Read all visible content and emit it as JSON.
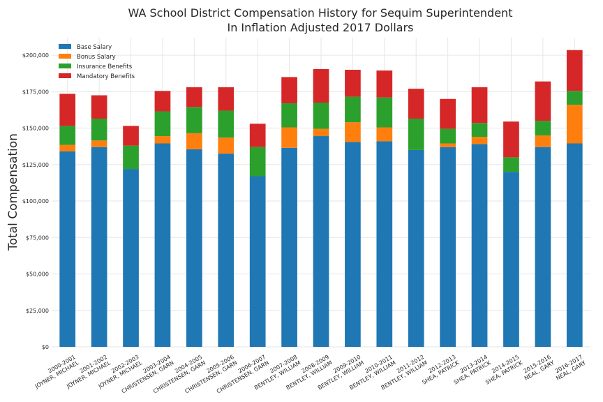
{
  "chart_data": {
    "type": "bar",
    "stacked": true,
    "title": "WA School District Compensation History for Sequim Superintendent",
    "subtitle": "In Inflation Adjusted 2017 Dollars",
    "xlabel": "",
    "ylabel": "Total Compensation",
    "ylim": [
      0,
      212000
    ],
    "yticks": [
      0,
      25000,
      50000,
      75000,
      100000,
      125000,
      150000,
      175000,
      200000
    ],
    "ytick_labels": [
      "$0",
      "$25,000",
      "$50,000",
      "$75,000",
      "$100,000",
      "$125,000",
      "$150,000",
      "$175,000",
      "$200,000"
    ],
    "grid": true,
    "legend_position": "top-left",
    "categories": [
      [
        "2000-2001",
        "JOYNER, MICHAEL"
      ],
      [
        "2001-2002",
        "JOYNER, MICHAEL"
      ],
      [
        "2002-2003",
        "JOYNER, MICHAEL"
      ],
      [
        "2003-2004",
        "CHRISTENSEN, GARN"
      ],
      [
        "2004-2005",
        "CHRISTENSEN, GARN"
      ],
      [
        "2005-2006",
        "CHRISTENSEN, GARN"
      ],
      [
        "2006-2007",
        "CHRISTENSEN, GARN"
      ],
      [
        "2007-2008",
        "BENTLEY, WILLIAM"
      ],
      [
        "2008-2009",
        "BENTLEY, WILLIAM"
      ],
      [
        "2009-2010",
        "BENTLEY, WILLIAM"
      ],
      [
        "2010-2011",
        "BENTLEY, WILLIAM"
      ],
      [
        "2011-2012",
        "BENTLEY, WILLIAM"
      ],
      [
        "2012-2013",
        "SHEA, PATRICK"
      ],
      [
        "2013-2014",
        "SHEA, PATRICK"
      ],
      [
        "2014-2015",
        "SHEA, PATRICK"
      ],
      [
        "2015-2016",
        "NEAL, GARY"
      ],
      [
        "2016-2017",
        "NEAL, GARY"
      ]
    ],
    "series": [
      {
        "name": "Base Salary",
        "color": "#1f77b4",
        "values": [
          134000,
          137000,
          122000,
          139500,
          135500,
          132500,
          117000,
          136500,
          144500,
          140500,
          141000,
          135000,
          137000,
          139000,
          120000,
          137000,
          139500
        ]
      },
      {
        "name": "Bonus Salary",
        "color": "#ff7f0e",
        "values": [
          4500,
          4500,
          0,
          5000,
          11000,
          11000,
          0,
          14000,
          5000,
          13500,
          9500,
          0,
          2500,
          5000,
          0,
          8000,
          26500
        ]
      },
      {
        "name": "Insurance Benefits",
        "color": "#2ca02c",
        "values": [
          13000,
          15000,
          16000,
          17000,
          18000,
          18500,
          20000,
          16500,
          18000,
          17500,
          20500,
          21500,
          10000,
          9500,
          10000,
          10000,
          9500
        ]
      },
      {
        "name": "Mandatory Benefits",
        "color": "#d62728",
        "values": [
          22000,
          16000,
          13500,
          14000,
          13500,
          16000,
          16000,
          18000,
          23000,
          18500,
          18500,
          20500,
          20500,
          24500,
          24500,
          27000,
          28000
        ]
      }
    ]
  }
}
